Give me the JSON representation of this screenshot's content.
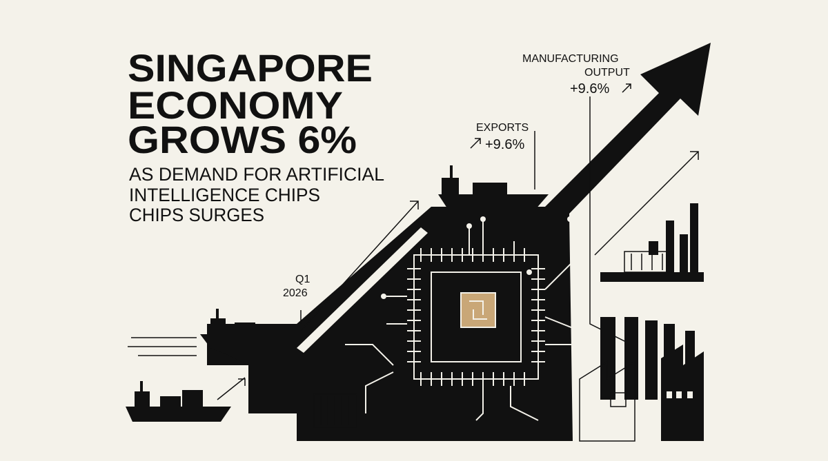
{
  "headline": {
    "lines": [
      "SINGAPORE",
      "ECONOMY",
      "GROWS 6%"
    ]
  },
  "subheadline": {
    "lines": [
      "AS DEMAND FOR ARTIFICIAL",
      "INTELLIGENCE CHIPS",
      "CHIPS SURGES"
    ]
  },
  "annotations": {
    "quarter": {
      "lines": [
        "Q1",
        "2026"
      ]
    },
    "exports": {
      "label": "EXPORTS",
      "value": "+9.6%"
    },
    "manufacturing": {
      "lines": [
        "MANUFACTURING",
        "OUTPUT"
      ],
      "value": "+9.6%"
    }
  }
}
